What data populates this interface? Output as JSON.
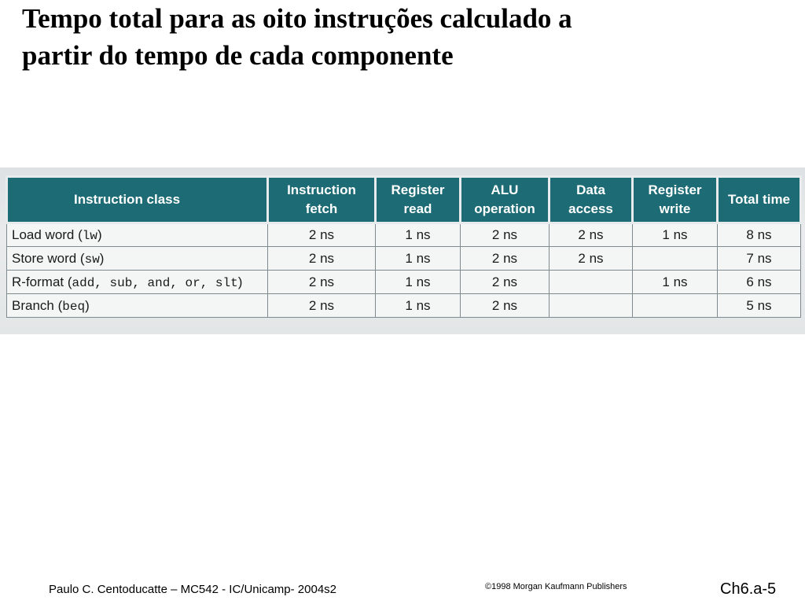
{
  "slide": {
    "title_line1": "Tempo total para as oito instruções calculado a",
    "title_line2": "partir do tempo de cada componente"
  },
  "table": {
    "headers": [
      "Instruction class",
      "Instruction fetch",
      "Register read",
      "ALU operation",
      "Data access",
      "Register write",
      "Total time"
    ],
    "rows": [
      {
        "label": "Load word (",
        "code": "lw",
        "label_end": ")",
        "cells": [
          "2 ns",
          "1 ns",
          "2 ns",
          "2 ns",
          "1 ns",
          "8 ns"
        ]
      },
      {
        "label": "Store word (",
        "code": "sw",
        "label_end": ")",
        "cells": [
          "2 ns",
          "1 ns",
          "2 ns",
          "2 ns",
          "",
          "7 ns"
        ]
      },
      {
        "label": "R-format (",
        "code": "add, sub, and, or, slt",
        "label_end": ")",
        "cells": [
          "2 ns",
          "1 ns",
          "2 ns",
          "",
          "1 ns",
          "6 ns"
        ]
      },
      {
        "label": "Branch (",
        "code": "beq",
        "label_end": ")",
        "cells": [
          "2 ns",
          "1 ns",
          "2 ns",
          "",
          "",
          "5 ns"
        ]
      }
    ]
  },
  "footer": {
    "author": "Paulo C. Centoducatte – MC542 - IC/Unicamp- 2004s2",
    "copyright": "©1998 Morgan Kaufmann Publishers",
    "page": "Ch6.a-5"
  }
}
